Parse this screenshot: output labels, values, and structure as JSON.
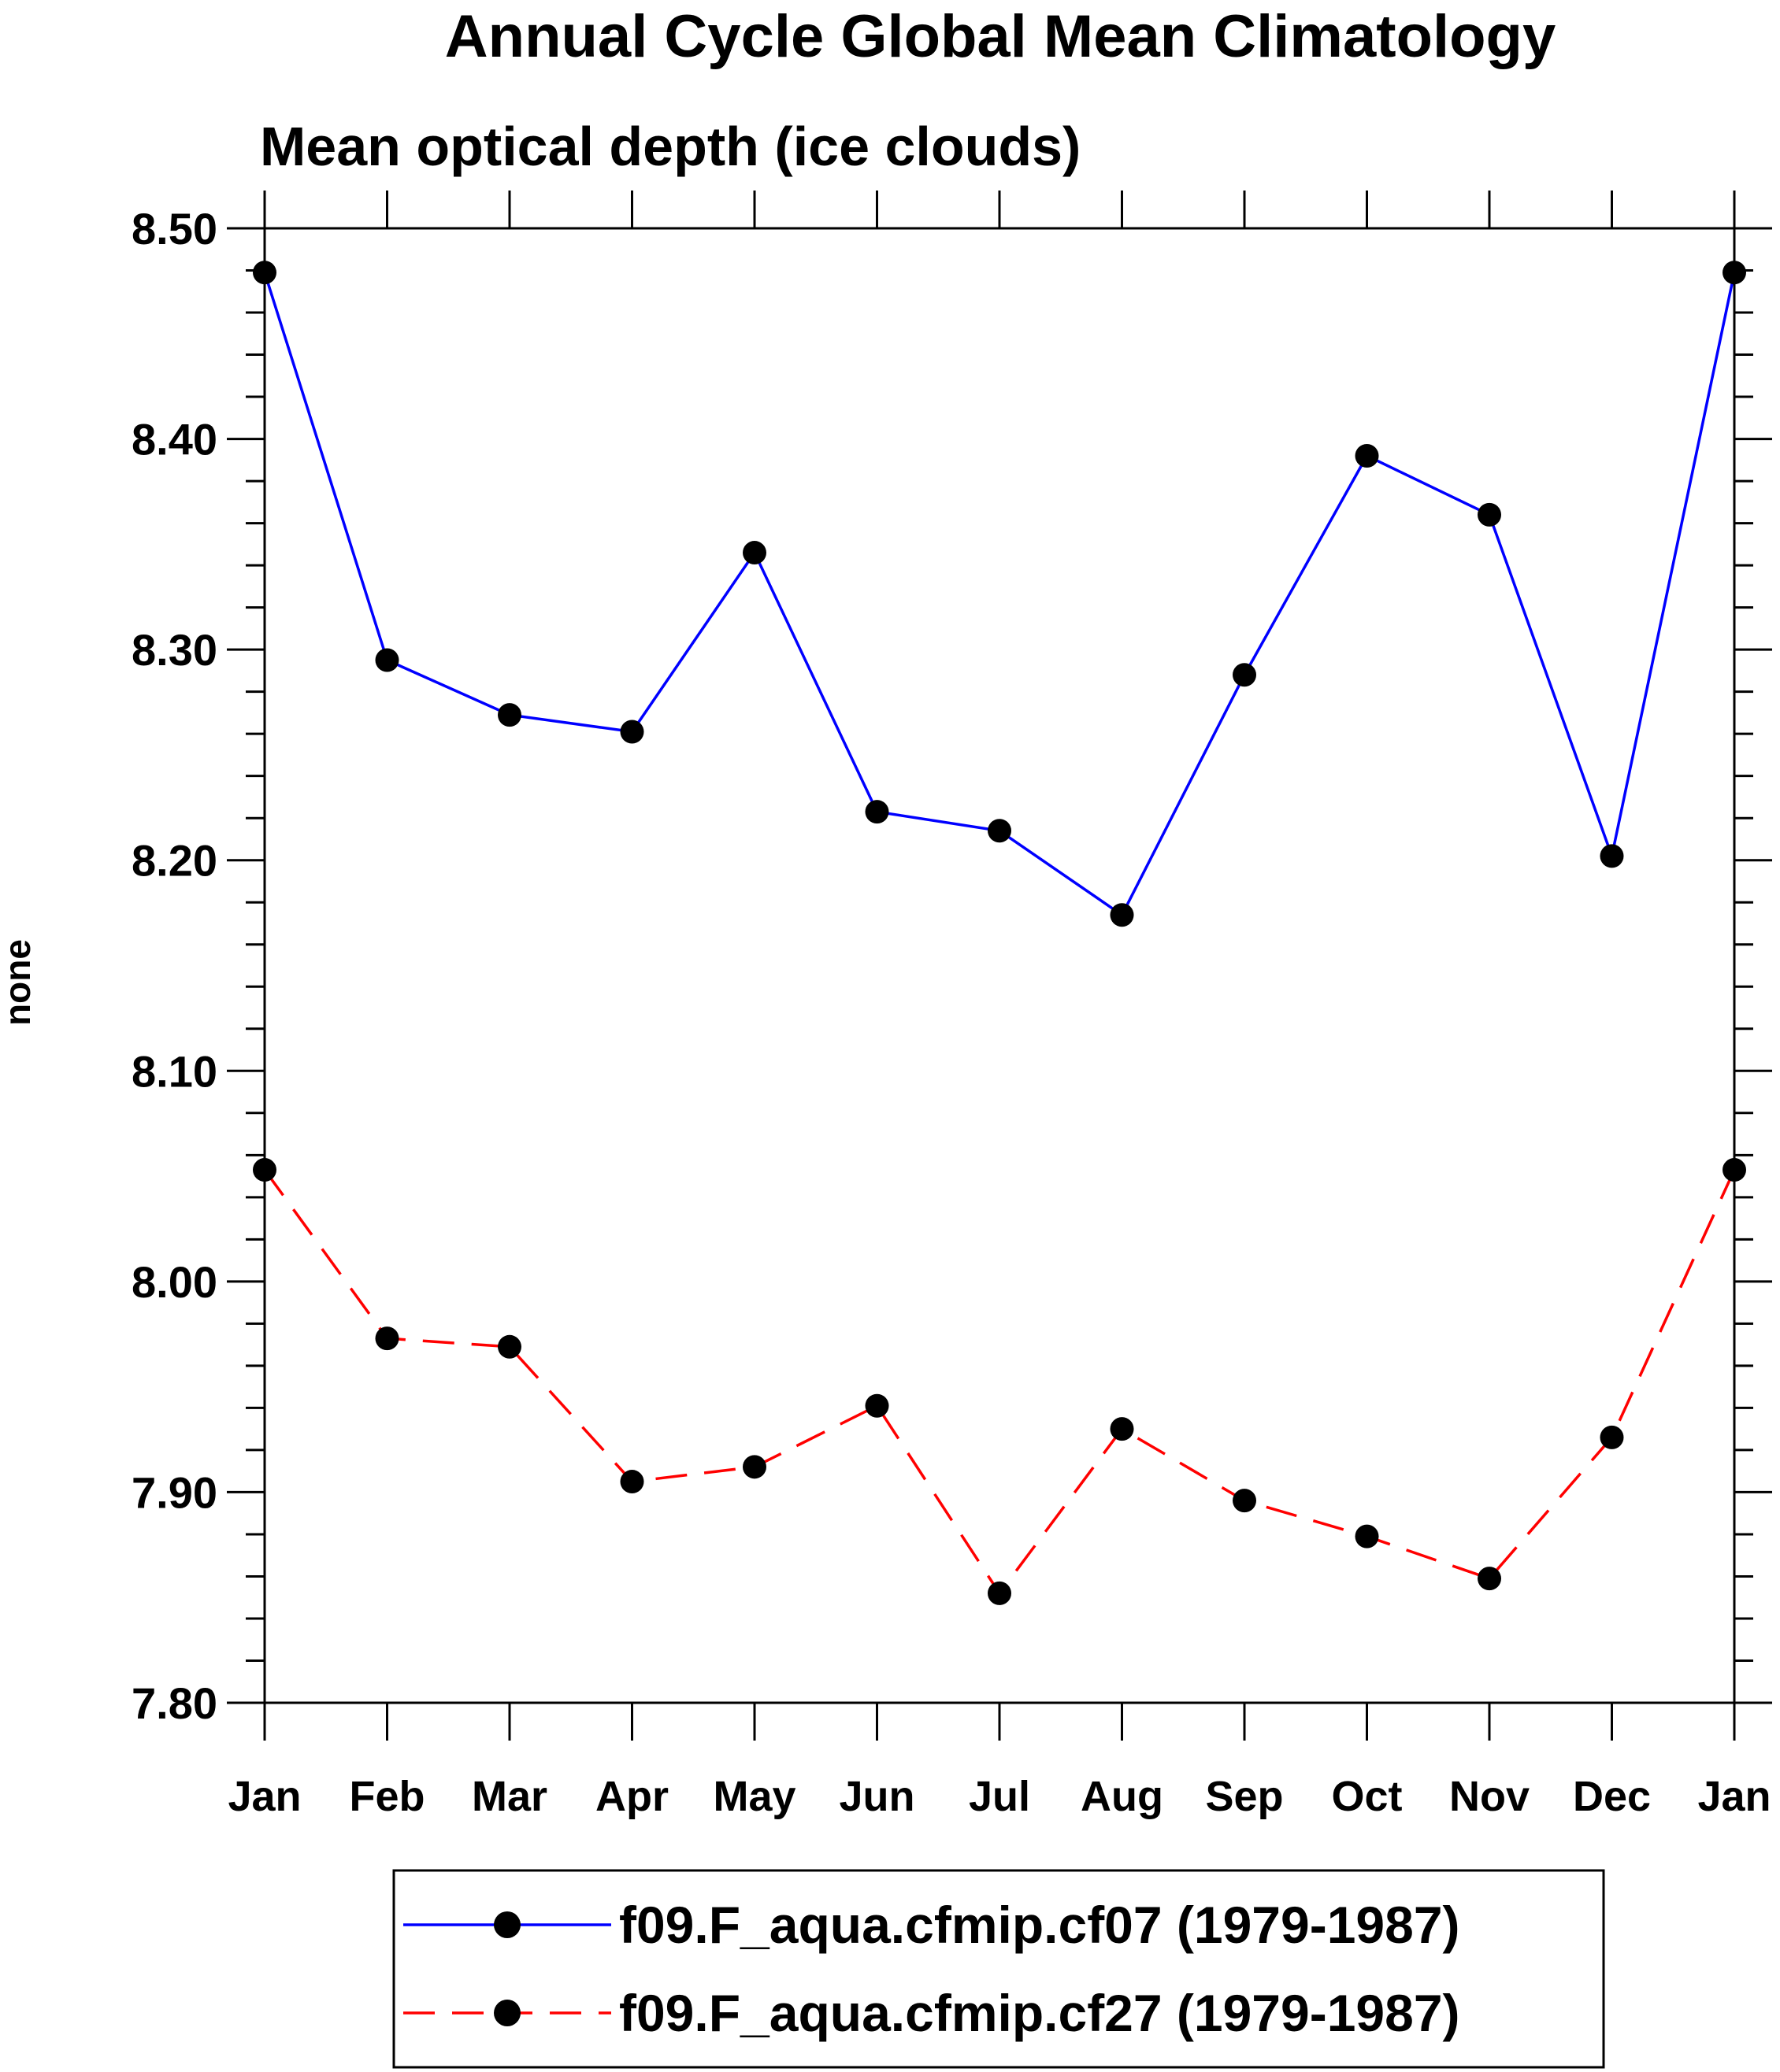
{
  "chart_data": {
    "type": "line",
    "title": "Annual Cycle Global Mean Climatology",
    "subtitle": "Mean optical depth (ice clouds)",
    "xlabel": "",
    "ylabel": "none",
    "categories": [
      "Jan",
      "Feb",
      "Mar",
      "Apr",
      "May",
      "Jun",
      "Jul",
      "Aug",
      "Sep",
      "Oct",
      "Nov",
      "Dec",
      "Jan"
    ],
    "ylim": [
      7.8,
      8.5
    ],
    "yticks": [
      "7.80",
      "7.90",
      "8.00",
      "8.10",
      "8.20",
      "8.30",
      "8.40",
      "8.50"
    ],
    "grid": false,
    "legend_position": "bottom",
    "series": [
      {
        "name": "f09.F_aqua.cfmip.cf07 (1979-1987)",
        "color": "#0000ff",
        "dash": "solid",
        "marker": "filled-circle",
        "values": [
          8.479,
          8.295,
          8.269,
          8.261,
          8.346,
          8.223,
          8.214,
          8.174,
          8.288,
          8.392,
          8.364,
          8.202,
          8.479
        ]
      },
      {
        "name": "f09.F_aqua.cfmip.cf27 (1979-1987)",
        "color": "#ff0000",
        "dash": "dashed",
        "marker": "filled-circle",
        "values": [
          8.053,
          7.973,
          7.969,
          7.905,
          7.912,
          7.941,
          7.852,
          7.93,
          7.896,
          7.879,
          7.859,
          7.926,
          8.053
        ]
      }
    ]
  }
}
